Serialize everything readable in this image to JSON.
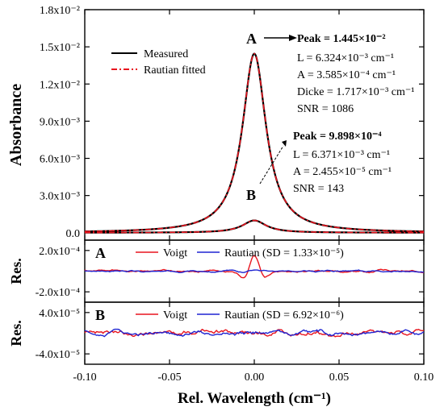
{
  "chart_data": [
    {
      "type": "line",
      "panel": "main",
      "ylabel": "Absorbance",
      "xlim": [
        -0.1,
        0.1
      ],
      "ylim": [
        -0.0006,
        0.018
      ],
      "y_ticks": [
        {
          "value": 0.0,
          "label": "0.0"
        },
        {
          "value": 0.003,
          "label": "3.0x10⁻³"
        },
        {
          "value": 0.006,
          "label": "6.0x10⁻³"
        },
        {
          "value": 0.009,
          "label": "9.0x10⁻³"
        },
        {
          "value": 0.012,
          "label": "1.2x10⁻²"
        },
        {
          "value": 0.015,
          "label": "1.5x10⁻²"
        },
        {
          "value": 0.018,
          "label": "1.8x10⁻²"
        }
      ],
      "legend": {
        "placement": "top-left",
        "entries": [
          "Measured",
          "Rautian fitted"
        ]
      },
      "series": [
        {
          "name": "Measured",
          "color": "#000000",
          "style": "solid",
          "peaks": [
            {
              "x": 0.0,
              "y": 0.01445,
              "halfwidth": 0.0085
            },
            {
              "x": 0.0,
              "y": 0.00099,
              "halfwidth": 0.0085
            }
          ]
        },
        {
          "name": "Rautian fitted",
          "color": "#e8141e",
          "style": "dash-dot",
          "peaks": [
            {
              "x": 0.0,
              "y": 0.01445,
              "halfwidth": 0.0085
            },
            {
              "x": 0.0,
              "y": 0.00099,
              "halfwidth": 0.0085
            }
          ]
        }
      ],
      "annotations": {
        "A": {
          "marker": "A",
          "peak": "Peak = 1.445×10⁻²",
          "lines": [
            "L = 6.324×10⁻³ cm⁻¹",
            "A = 3.585×10⁻⁴ cm⁻¹",
            "Dicke = 1.717×10⁻³ cm⁻¹",
            "SNR = 1086"
          ]
        },
        "B": {
          "marker": "B",
          "peak": "Peak = 9.898×10⁻⁴",
          "lines": [
            "L = 6.371×10⁻³ cm⁻¹",
            "A = 2.455×10⁻⁵ cm⁻¹",
            "SNR = 143"
          ]
        }
      }
    },
    {
      "type": "line",
      "panel": "residual-A",
      "label": "A",
      "ylabel": "Res.",
      "ylim": [
        -0.0003,
        0.0003
      ],
      "y_ticks": [
        {
          "value": 0.0002,
          "label": "2.0x10⁻⁴"
        },
        {
          "value": -0.0002,
          "label": "-2.0x10⁻⁴"
        }
      ],
      "legend": {
        "placement": "top",
        "entries": [
          "Voigt",
          "Rautian (SD = 1.33×10⁻⁵)"
        ]
      },
      "series": [
        {
          "name": "Voigt",
          "color": "#e8141e",
          "noise": 1.5e-05,
          "center_amp": 0.00016
        },
        {
          "name": "Rautian (SD = 1.33×10⁻⁵)",
          "color": "#1e24d2",
          "noise": 1.33e-05,
          "center_amp": 1e-05
        }
      ]
    },
    {
      "type": "line",
      "panel": "residual-B",
      "label": "B",
      "ylabel": "Res.",
      "ylim": [
        -6e-05,
        6e-05
      ],
      "y_ticks": [
        {
          "value": 4e-05,
          "label": "4.0x10⁻⁵"
        },
        {
          "value": -4e-05,
          "label": "-4.0x10⁻⁵"
        }
      ],
      "legend": {
        "placement": "top",
        "entries": [
          "Voigt",
          "Rautian (SD = 6.92×10⁻⁶)"
        ]
      },
      "series": [
        {
          "name": "Voigt",
          "color": "#e8141e",
          "noise": 8.5e-06
        },
        {
          "name": "Rautian (SD = 6.92×10⁻⁶)",
          "color": "#1e24d2",
          "noise": 6.9e-06
        }
      ]
    }
  ],
  "x_axis": {
    "label": "Rel. Wavelength (cm⁻¹)",
    "ticks": [
      {
        "value": -0.1,
        "label": "-0.10"
      },
      {
        "value": -0.05,
        "label": "-0.05"
      },
      {
        "value": 0.0,
        "label": "0.00"
      },
      {
        "value": 0.05,
        "label": "0.05"
      },
      {
        "value": 0.1,
        "label": "0.10"
      }
    ]
  }
}
